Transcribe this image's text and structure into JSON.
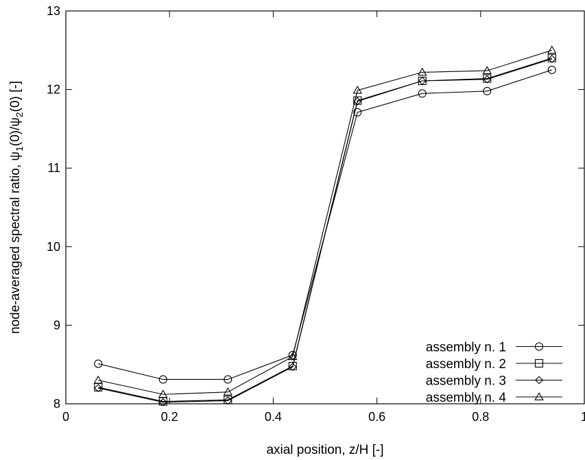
{
  "chart_data": {
    "type": "line",
    "title": "",
    "xlabel": "axial position, z/H [-]",
    "ylabel_parts": {
      "prefix": "node-averaged spectral ratio, ",
      "psi": "ψ",
      "sub1": "1",
      "mid": "(0)/",
      "sub2": "2",
      "suffix": "(0) [-]"
    },
    "xlim": [
      0,
      1
    ],
    "ylim": [
      8,
      13
    ],
    "xticks": [
      0,
      0.2,
      0.4,
      0.6,
      0.8,
      1
    ],
    "xtick_labels": [
      "0",
      "0.2",
      "0.4",
      "0.6",
      "0.8",
      "1"
    ],
    "yticks": [
      8,
      9,
      10,
      11,
      12,
      13
    ],
    "ytick_labels": [
      "8",
      "9",
      "10",
      "11",
      "12",
      "13"
    ],
    "grid": false,
    "legend_position": "bottom-right",
    "x": [
      0.0625,
      0.1875,
      0.3125,
      0.4375,
      0.5625,
      0.6875,
      0.8125,
      0.9375
    ],
    "series": [
      {
        "name": "assembly n. 1",
        "marker": "circle",
        "values": [
          8.51,
          8.31,
          8.31,
          8.62,
          11.71,
          11.95,
          11.98,
          12.25
        ]
      },
      {
        "name": "assembly n. 2",
        "marker": "square",
        "values": [
          8.21,
          8.03,
          8.05,
          8.48,
          11.86,
          12.11,
          12.14,
          12.4
        ]
      },
      {
        "name": "assembly n. 3",
        "marker": "diamond",
        "values": [
          8.2,
          8.02,
          8.04,
          8.47,
          11.85,
          12.11,
          12.13,
          12.39
        ]
      },
      {
        "name": "assembly n. 4",
        "marker": "triangle",
        "values": [
          8.3,
          8.12,
          8.15,
          8.6,
          11.99,
          12.22,
          12.24,
          12.5
        ]
      }
    ],
    "line_color": "#000000"
  }
}
